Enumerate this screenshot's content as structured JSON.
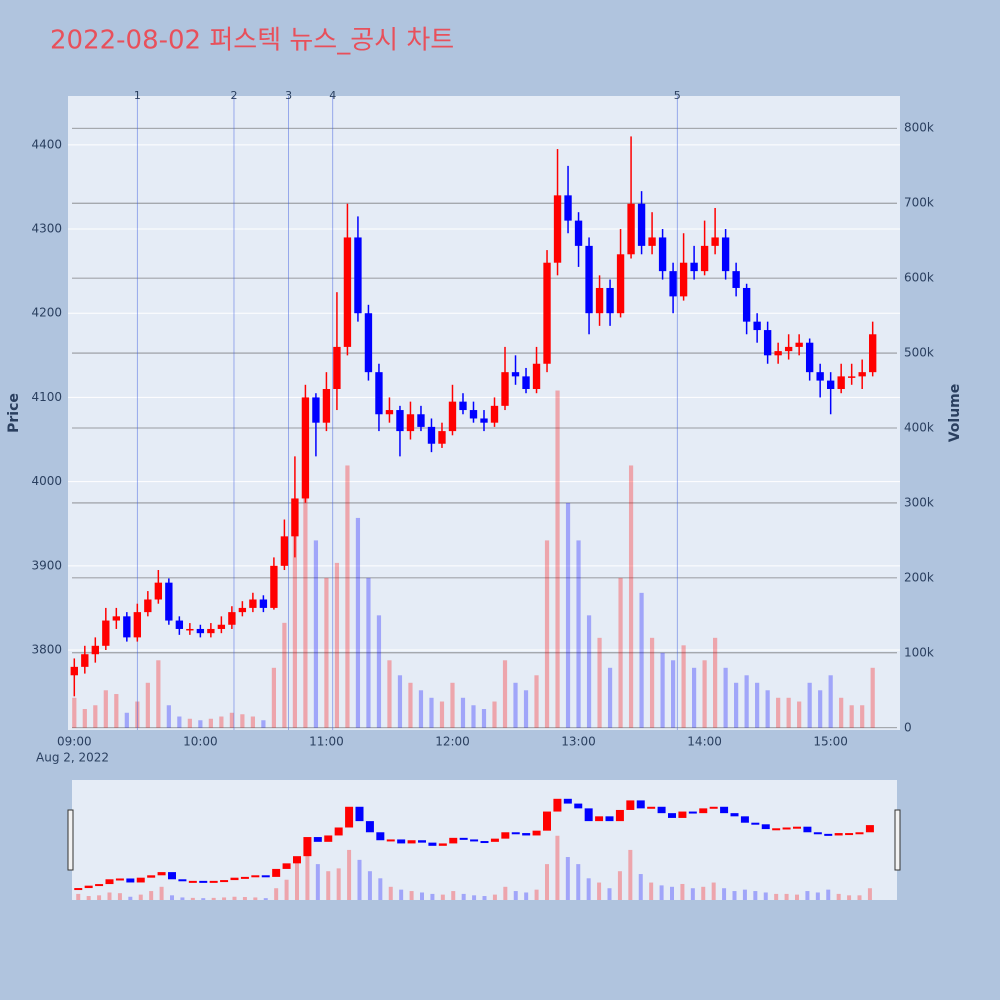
{
  "chart_data": {
    "type": "candlestick",
    "title": "2022-08-02 퍼스텍 뉴스_공시 차트",
    "y_label": "Price",
    "y2_label": "Volume",
    "x_sublabel": "Aug 2, 2022",
    "increasing_color": "#ff0000",
    "decreasing_color": "#0000ff",
    "x": [
      "09:00",
      "09:05",
      "09:10",
      "09:15",
      "09:20",
      "09:25",
      "09:30",
      "09:35",
      "09:40",
      "09:45",
      "09:50",
      "09:55",
      "10:00",
      "10:05",
      "10:10",
      "10:15",
      "10:20",
      "10:25",
      "10:30",
      "10:35",
      "10:40",
      "10:45",
      "10:50",
      "10:55",
      "11:00",
      "11:05",
      "11:10",
      "11:15",
      "11:20",
      "11:25",
      "11:30",
      "11:35",
      "11:40",
      "11:45",
      "11:50",
      "11:55",
      "12:00",
      "12:05",
      "12:10",
      "12:15",
      "12:20",
      "12:25",
      "12:30",
      "12:35",
      "12:40",
      "12:45",
      "12:50",
      "12:55",
      "13:00",
      "13:05",
      "13:10",
      "13:15",
      "13:20",
      "13:25",
      "13:30",
      "13:35",
      "13:40",
      "13:45",
      "13:50",
      "13:55",
      "14:00",
      "14:05",
      "14:10",
      "14:15",
      "14:20",
      "14:25",
      "14:30",
      "14:35",
      "14:40",
      "14:45",
      "14:50",
      "14:55",
      "15:00",
      "15:05",
      "15:10",
      "15:15",
      "15:20"
    ],
    "open": [
      3770,
      3780,
      3795,
      3805,
      3835,
      3840,
      3815,
      3845,
      3860,
      3880,
      3835,
      3825,
      3825,
      3820,
      3825,
      3830,
      3845,
      3850,
      3860,
      3850,
      3900,
      3935,
      3980,
      4100,
      4070,
      4110,
      4160,
      4290,
      4200,
      4130,
      4080,
      4085,
      4060,
      4080,
      4065,
      4045,
      4060,
      4095,
      4085,
      4075,
      4070,
      4090,
      4130,
      4125,
      4110,
      4140,
      4260,
      4340,
      4310,
      4280,
      4200,
      4230,
      4200,
      4270,
      4330,
      4280,
      4290,
      4250,
      4220,
      4260,
      4250,
      4280,
      4290,
      4250,
      4230,
      4190,
      4180,
      4150,
      4155,
      4160,
      4165,
      4130,
      4120,
      4110,
      4125,
      4125,
      4130
    ],
    "high": [
      3790,
      3805,
      3815,
      3850,
      3850,
      3845,
      3855,
      3870,
      3895,
      3885,
      3840,
      3832,
      3830,
      3832,
      3840,
      3852,
      3858,
      3868,
      3865,
      3910,
      3955,
      4030,
      4115,
      4105,
      4130,
      4225,
      4330,
      4315,
      4210,
      4140,
      4100,
      4090,
      4095,
      4090,
      4075,
      4070,
      4115,
      4105,
      4095,
      4085,
      4100,
      4160,
      4150,
      4135,
      4160,
      4275,
      4395,
      4375,
      4320,
      4290,
      4245,
      4240,
      4300,
      4410,
      4345,
      4320,
      4300,
      4260,
      4295,
      4280,
      4310,
      4325,
      4300,
      4260,
      4235,
      4200,
      4190,
      4165,
      4175,
      4175,
      4170,
      4140,
      4130,
      4140,
      4140,
      4145,
      4190
    ],
    "low": [
      3745,
      3772,
      3785,
      3800,
      3825,
      3810,
      3810,
      3840,
      3855,
      3830,
      3818,
      3818,
      3815,
      3815,
      3820,
      3825,
      3840,
      3845,
      3845,
      3848,
      3895,
      3910,
      3975,
      4030,
      4060,
      4085,
      4150,
      4190,
      4120,
      4060,
      4070,
      4030,
      4050,
      4060,
      4035,
      4040,
      4055,
      4080,
      4070,
      4060,
      4065,
      4085,
      4115,
      4105,
      4105,
      4130,
      4245,
      4295,
      4255,
      4175,
      4185,
      4185,
      4195,
      4265,
      4270,
      4270,
      4240,
      4200,
      4215,
      4240,
      4245,
      4270,
      4240,
      4220,
      4175,
      4165,
      4140,
      4140,
      4145,
      4150,
      4120,
      4100,
      4080,
      4105,
      4115,
      4110,
      4125
    ],
    "close": [
      3780,
      3795,
      3805,
      3835,
      3840,
      3815,
      3845,
      3860,
      3880,
      3835,
      3825,
      3825,
      3820,
      3825,
      3830,
      3845,
      3850,
      3860,
      3850,
      3900,
      3935,
      3980,
      4100,
      4070,
      4110,
      4160,
      4290,
      4200,
      4130,
      4080,
      4085,
      4060,
      4080,
      4065,
      4045,
      4060,
      4095,
      4085,
      4075,
      4070,
      4090,
      4130,
      4125,
      4110,
      4140,
      4260,
      4340,
      4310,
      4280,
      4200,
      4230,
      4200,
      4270,
      4330,
      4280,
      4290,
      4250,
      4220,
      4260,
      4250,
      4280,
      4290,
      4250,
      4230,
      4190,
      4180,
      4150,
      4155,
      4160,
      4165,
      4130,
      4120,
      4110,
      4125,
      4125,
      4130,
      4175
    ],
    "volume": [
      40000,
      25000,
      30000,
      50000,
      45000,
      20000,
      35000,
      60000,
      90000,
      30000,
      15000,
      12000,
      10000,
      12000,
      15000,
      20000,
      18000,
      15000,
      10000,
      80000,
      140000,
      300000,
      400000,
      250000,
      200000,
      220000,
      350000,
      280000,
      200000,
      150000,
      90000,
      70000,
      60000,
      50000,
      40000,
      35000,
      60000,
      40000,
      30000,
      25000,
      35000,
      90000,
      60000,
      50000,
      70000,
      250000,
      450000,
      300000,
      250000,
      150000,
      120000,
      80000,
      200000,
      350000,
      180000,
      120000,
      100000,
      90000,
      110000,
      80000,
      90000,
      120000,
      80000,
      60000,
      70000,
      60000,
      50000,
      40000,
      40000,
      35000,
      60000,
      50000,
      70000,
      40000,
      30000,
      30000,
      80000
    ],
    "xlim": [
      "08:57",
      "15:33"
    ],
    "xticks": [
      "09:00",
      "10:00",
      "11:00",
      "12:00",
      "13:00",
      "14:00",
      "15:00"
    ],
    "ylim": [
      3705,
      4458
    ],
    "yticks": [
      3800,
      3900,
      4000,
      4100,
      4200,
      4300,
      4400
    ],
    "y2lim": [
      -3000,
      843000
    ],
    "y2ticks": [
      0,
      {
        "value": 100000,
        "label": "100k"
      },
      {
        "value": 200000,
        "label": "200k"
      },
      {
        "value": 300000,
        "label": "300k"
      },
      {
        "value": 400000,
        "label": "400k"
      },
      {
        "value": 500000,
        "label": "500k"
      },
      {
        "value": 600000,
        "label": "600k"
      },
      {
        "value": 700000,
        "label": "700k"
      },
      {
        "value": 800000,
        "label": "800k"
      }
    ],
    "events": [
      {
        "x": "09:30",
        "label": "1"
      },
      {
        "x": "10:16",
        "label": "2"
      },
      {
        "x": "10:42",
        "label": "3"
      },
      {
        "x": "11:03",
        "label": "4"
      },
      {
        "x": "13:47",
        "label": "5"
      }
    ]
  }
}
